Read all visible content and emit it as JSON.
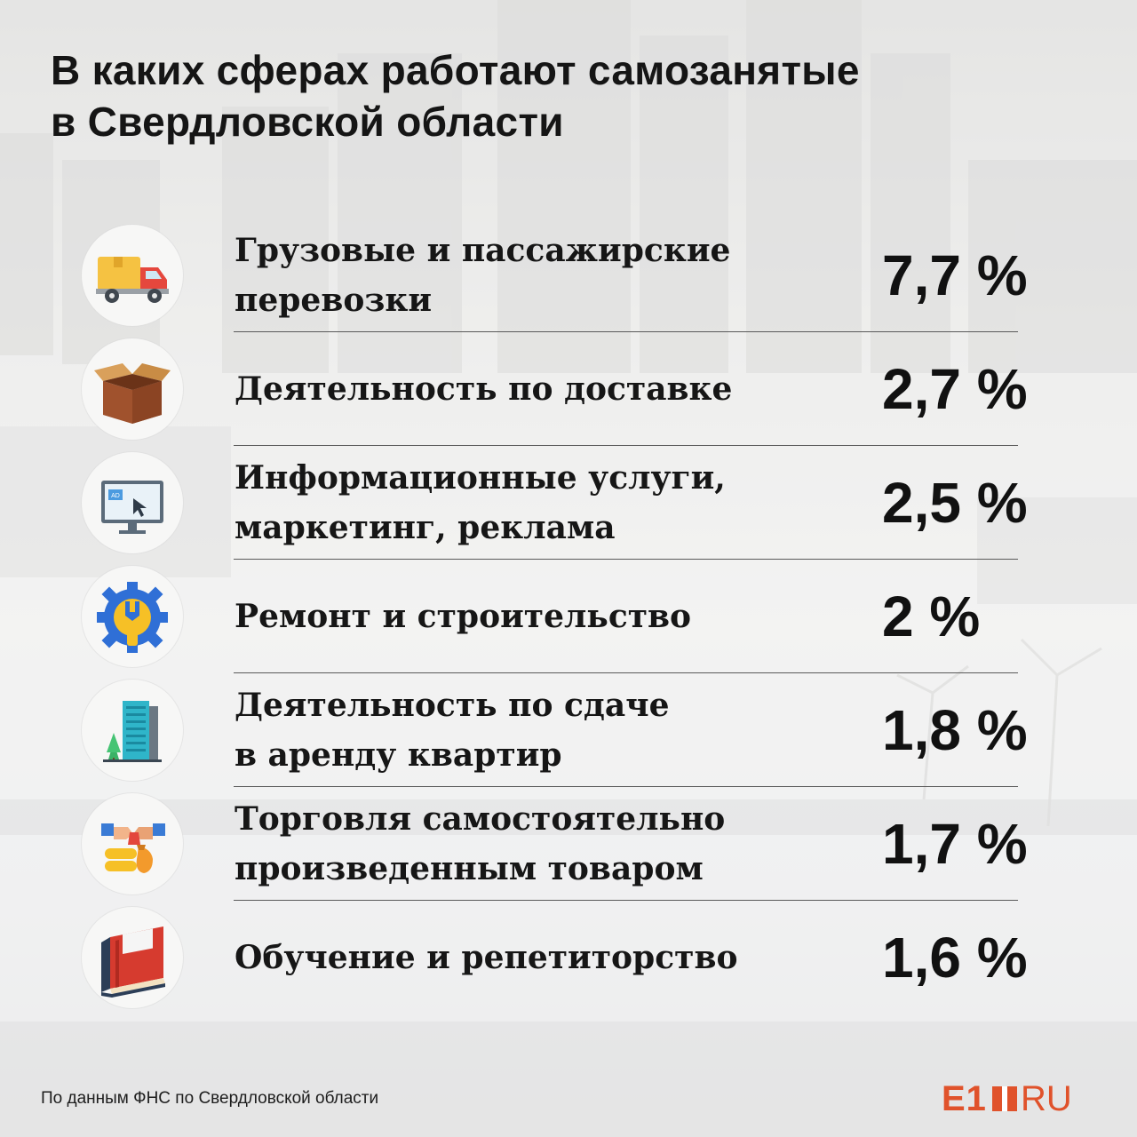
{
  "title": {
    "line1": "В каких сферах работают самозанятые",
    "line2": "в Свердловской области"
  },
  "items": [
    {
      "icon": "delivery-truck-icon",
      "lines": [
        "Грузовые и пассажирские",
        "перевозки"
      ],
      "value": "7,7 %"
    },
    {
      "icon": "open-box-icon",
      "lines": [
        "Деятельность по доставке"
      ],
      "value": "2,7 %"
    },
    {
      "icon": "ad-monitor-icon",
      "lines": [
        "Информационные услуги,",
        "маркетинг, реклама"
      ],
      "value": "2,5 %"
    },
    {
      "icon": "wrench-gear-icon",
      "lines": [
        "Ремонт и строительство"
      ],
      "value": "2 %"
    },
    {
      "icon": "apartment-building-icon",
      "lines": [
        "Деятельность по сдаче",
        "в аренду квартир"
      ],
      "value": "1,8 %"
    },
    {
      "icon": "handshake-trade-icon",
      "lines": [
        "Торговля самостоятельно",
        "произведенным товаром"
      ],
      "value": "1,7 %"
    },
    {
      "icon": "books-icon",
      "lines": [
        "Обучение и репетиторство"
      ],
      "value": "1,6 %"
    }
  ],
  "footer": {
    "source": "По данным ФНС по Свердловской области",
    "logo_left": "E1",
    "logo_right": "RU"
  },
  "colors": {
    "brand": "#e0522b",
    "text": "#151515"
  }
}
